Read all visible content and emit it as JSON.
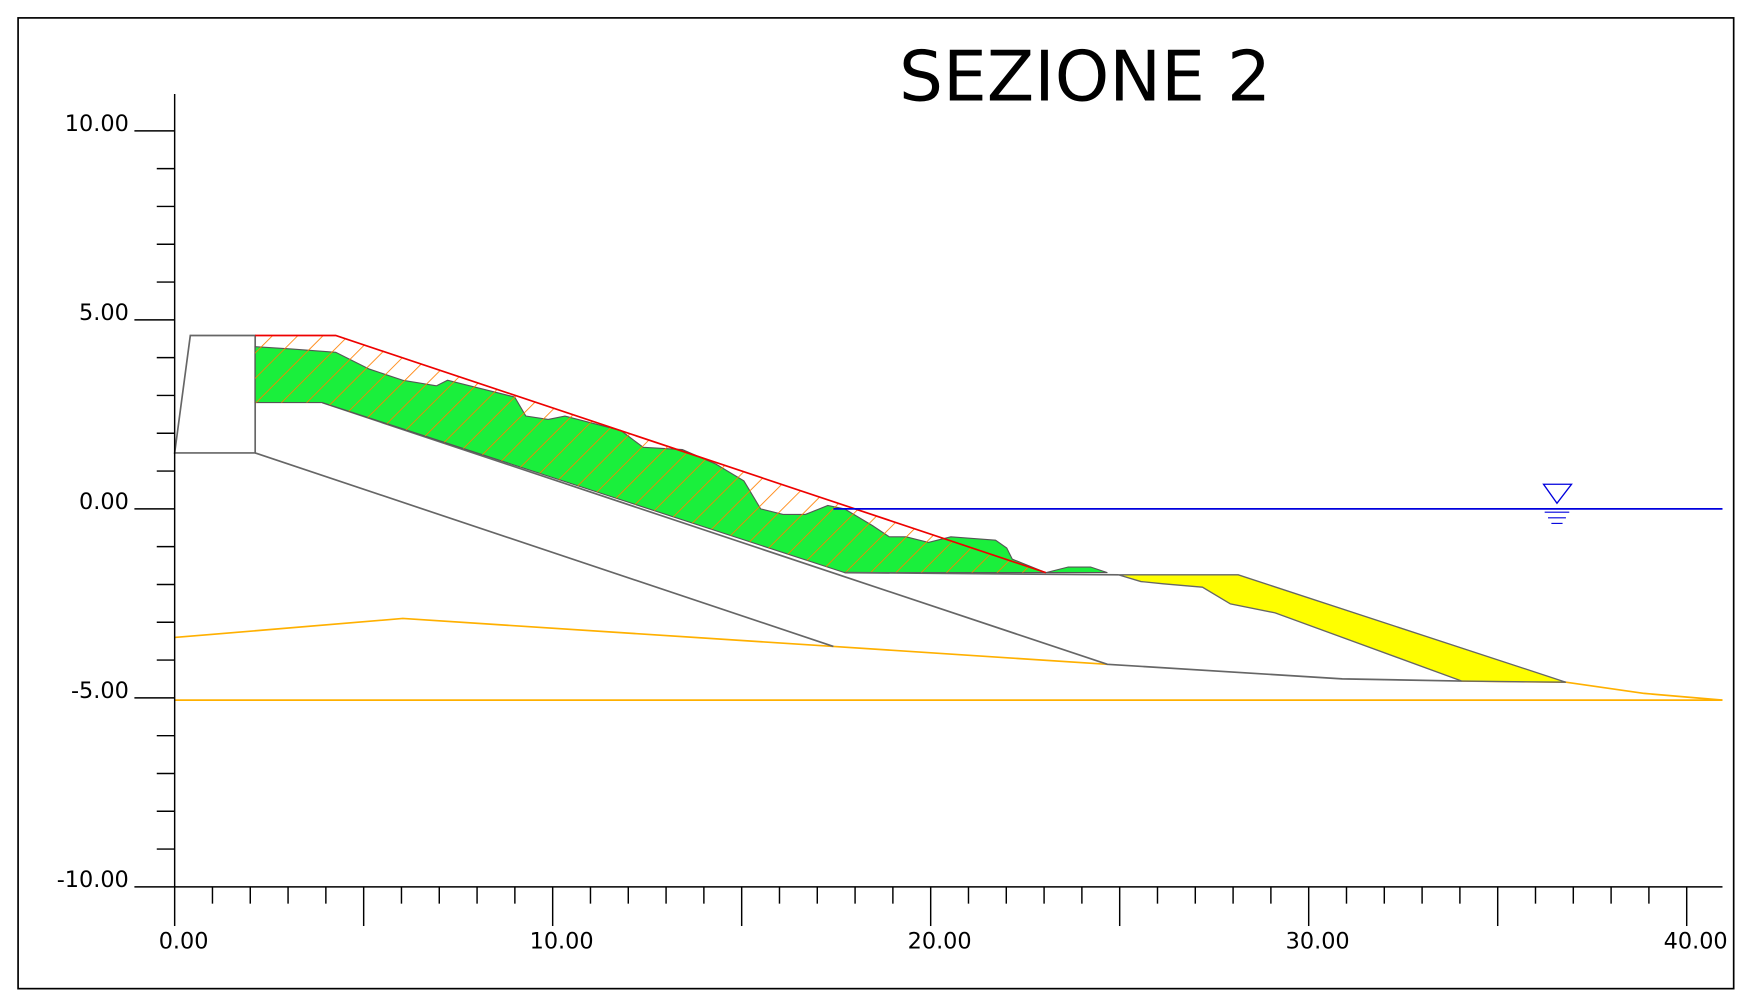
{
  "title": "SEZIONE 2",
  "y_axis": {
    "tick_labels": [
      "10.00",
      "5.00",
      "0.00",
      "-5.00",
      "-10.00"
    ]
  },
  "x_axis": {
    "tick_labels": [
      "0.00",
      "10.00",
      "20.00",
      "30.00",
      "40.00"
    ]
  }
}
